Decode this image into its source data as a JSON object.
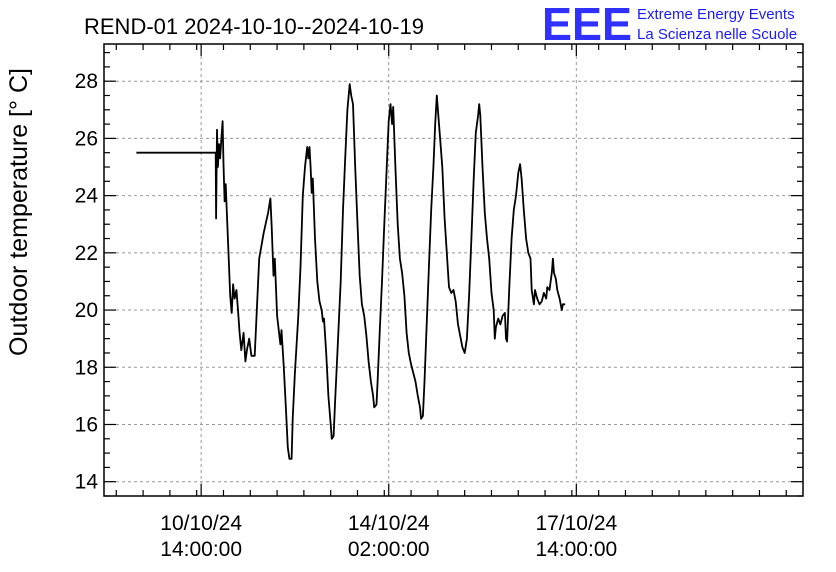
{
  "chart_data": {
    "type": "line",
    "title": "REND-01 2024-10-10--2024-10-19",
    "ylabel": "Outdoor temperature [° C]",
    "xlabel": "",
    "ylim": [
      13.5,
      29.3
    ],
    "yticks": [
      14,
      16,
      18,
      20,
      22,
      24,
      26,
      28
    ],
    "x_unit": "hours since 2024-10-10 00:00",
    "xlim": [
      -29.5,
      283.5
    ],
    "xticks": [
      {
        "x": 14,
        "label": [
          "10/10/24",
          "14:00:00"
        ]
      },
      {
        "x": 98,
        "label": [
          "14/10/24",
          "02:00:00"
        ]
      },
      {
        "x": 182,
        "label": [
          "17/10/24",
          "14:00:00"
        ]
      }
    ],
    "grid": true,
    "series": [
      {
        "name": "Outdoor temperature",
        "color": "#000000",
        "points": [
          [
            -15,
            25.5
          ],
          [
            20.5,
            25.5
          ],
          [
            20.7,
            23.2
          ],
          [
            21.1,
            26.3
          ],
          [
            21.5,
            25
          ],
          [
            22,
            25.8
          ],
          [
            22.5,
            25.3
          ],
          [
            23,
            25.9
          ],
          [
            23.6,
            26.6
          ],
          [
            24,
            25.1
          ],
          [
            24.5,
            23.8
          ],
          [
            25,
            24.4
          ],
          [
            26,
            22.5
          ],
          [
            27,
            20.5
          ],
          [
            27.7,
            19.9
          ],
          [
            28.3,
            20.9
          ],
          [
            29,
            20.4
          ],
          [
            29.8,
            20.7
          ],
          [
            30.5,
            20
          ],
          [
            31.2,
            19.2
          ],
          [
            32,
            18.6
          ],
          [
            33,
            19.2
          ],
          [
            33.8,
            18.2
          ],
          [
            34.5,
            18.6
          ],
          [
            35.5,
            19
          ],
          [
            36.5,
            18.4
          ],
          [
            38,
            18.4
          ],
          [
            40,
            21.8
          ],
          [
            42,
            22.7
          ],
          [
            44,
            23.4
          ],
          [
            45,
            23.9
          ],
          [
            45.6,
            22.9
          ],
          [
            46.4,
            21.2
          ],
          [
            47,
            21.8
          ],
          [
            48,
            19.8
          ],
          [
            49.5,
            18.8
          ],
          [
            50,
            19.3
          ],
          [
            51,
            18
          ],
          [
            52,
            16.5
          ],
          [
            52.8,
            15.2
          ],
          [
            53.5,
            14.8
          ],
          [
            54.5,
            14.8
          ],
          [
            55,
            16.2
          ],
          [
            56,
            17.8
          ],
          [
            57.5,
            19.8
          ],
          [
            58.5,
            21.5
          ],
          [
            59.5,
            24
          ],
          [
            60,
            24.5
          ],
          [
            60.5,
            25
          ],
          [
            61.5,
            25.7
          ],
          [
            62,
            25.3
          ],
          [
            62.5,
            25.7
          ],
          [
            63,
            25
          ],
          [
            63.5,
            24.1
          ],
          [
            64,
            24.6
          ],
          [
            65,
            22.5
          ],
          [
            66,
            21
          ],
          [
            67,
            20.3
          ],
          [
            68,
            20
          ],
          [
            68.5,
            19.6
          ],
          [
            69,
            19.7
          ],
          [
            70,
            18.5
          ],
          [
            71,
            17
          ],
          [
            72,
            16
          ],
          [
            72.5,
            15.5
          ],
          [
            73.3,
            15.6
          ],
          [
            74,
            16.8
          ],
          [
            75,
            18.5
          ],
          [
            76.5,
            21
          ],
          [
            77.5,
            23.5
          ],
          [
            78.5,
            25.3
          ],
          [
            79.5,
            27
          ],
          [
            80.5,
            27.9
          ],
          [
            81.2,
            27.5
          ],
          [
            82,
            27.2
          ],
          [
            83,
            25
          ],
          [
            84,
            23
          ],
          [
            85,
            21.2
          ],
          [
            86,
            20.2
          ],
          [
            87,
            19.8
          ],
          [
            88,
            19.1
          ],
          [
            89,
            18.2
          ],
          [
            90,
            17.5
          ],
          [
            91,
            17
          ],
          [
            91.5,
            16.6
          ],
          [
            92.5,
            16.7
          ],
          [
            93,
            17.5
          ],
          [
            94,
            19.3
          ],
          [
            95,
            21
          ],
          [
            96,
            23
          ],
          [
            97,
            24.8
          ],
          [
            98,
            26.6
          ],
          [
            98.8,
            27.2
          ],
          [
            99.5,
            26.5
          ],
          [
            100,
            27.1
          ],
          [
            101,
            25
          ],
          [
            102,
            23
          ],
          [
            103,
            21.8
          ],
          [
            104,
            21.3
          ],
          [
            105,
            20.5
          ],
          [
            106,
            19.2
          ],
          [
            107,
            18.5
          ],
          [
            108,
            18.1
          ],
          [
            109,
            17.8
          ],
          [
            110,
            17.5
          ],
          [
            111,
            17
          ],
          [
            112,
            16.6
          ],
          [
            112.5,
            16.2
          ],
          [
            113.3,
            16.3
          ],
          [
            114,
            17.5
          ],
          [
            115,
            19.5
          ],
          [
            116,
            21.5
          ],
          [
            117,
            23.5
          ],
          [
            118,
            25
          ],
          [
            118.8,
            26.5
          ],
          [
            119.5,
            27.5
          ],
          [
            120,
            27
          ],
          [
            121,
            26
          ],
          [
            122,
            25
          ],
          [
            123,
            23.2
          ],
          [
            124,
            22
          ],
          [
            125,
            20.8
          ],
          [
            126,
            20.6
          ],
          [
            127,
            20.7
          ],
          [
            128,
            20.3
          ],
          [
            129,
            19.5
          ],
          [
            130,
            19.1
          ],
          [
            131,
            18.7
          ],
          [
            132,
            18.5
          ],
          [
            133,
            19
          ],
          [
            134,
            20.5
          ],
          [
            135,
            22.5
          ],
          [
            136,
            24.5
          ],
          [
            137,
            26.2
          ],
          [
            138,
            26.8
          ],
          [
            138.5,
            27.2
          ],
          [
            139,
            26.8
          ],
          [
            140,
            25
          ],
          [
            141,
            23.4
          ],
          [
            142,
            22.5
          ],
          [
            143,
            21.8
          ],
          [
            144,
            20.6
          ],
          [
            145,
            20
          ],
          [
            145.5,
            19
          ],
          [
            146,
            19.4
          ],
          [
            147,
            19.7
          ],
          [
            148,
            19.5
          ],
          [
            149,
            19.8
          ],
          [
            150,
            19.9
          ],
          [
            150.5,
            19
          ],
          [
            151,
            18.9
          ],
          [
            152,
            20.8
          ],
          [
            153,
            22.5
          ],
          [
            154,
            23.5
          ],
          [
            155,
            24
          ],
          [
            156,
            24.8
          ],
          [
            156.8,
            25.1
          ],
          [
            157.5,
            24.6
          ],
          [
            158.5,
            23.5
          ],
          [
            159.5,
            22.5
          ],
          [
            160.5,
            22
          ],
          [
            161.5,
            21.8
          ],
          [
            162,
            20.7
          ],
          [
            163,
            20.2
          ],
          [
            163.5,
            20.7
          ],
          [
            164.5,
            20.4
          ],
          [
            165.5,
            20.2
          ],
          [
            166.5,
            20.3
          ],
          [
            167.5,
            20.6
          ],
          [
            168.5,
            20.4
          ],
          [
            169,
            20.8
          ],
          [
            170,
            20.7
          ],
          [
            171,
            21.3
          ],
          [
            171.5,
            21.8
          ],
          [
            172,
            21.3
          ],
          [
            172.8,
            21.1
          ],
          [
            173.5,
            20.7
          ],
          [
            174.5,
            20.4
          ],
          [
            175.5,
            20
          ],
          [
            176,
            20.2
          ],
          [
            177,
            20.2
          ]
        ]
      }
    ]
  },
  "brand": {
    "logo_text": "EEE",
    "line1": "Extreme Energy Events",
    "line2": "La Scienza nelle Scuole",
    "color": "#1a1aff"
  }
}
